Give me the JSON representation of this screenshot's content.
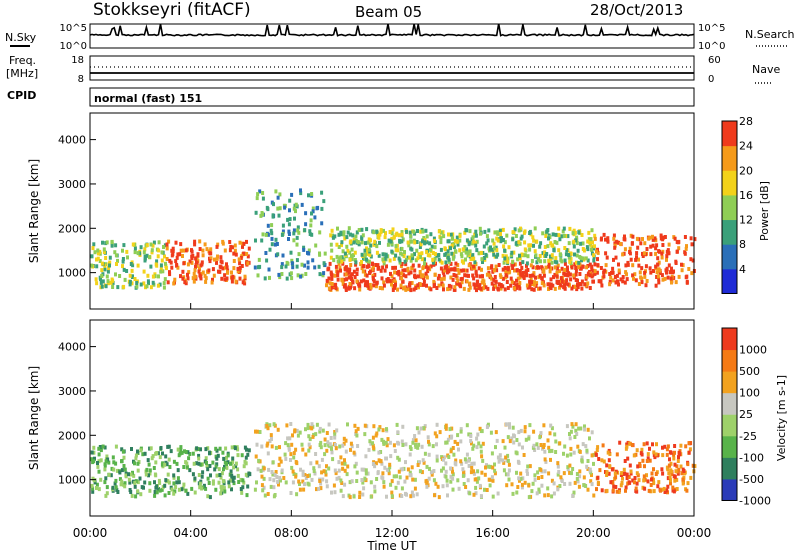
{
  "header": {
    "station": "Stokkseyri (fitACF)",
    "beam": "Beam 05",
    "date": "28/Oct/2013"
  },
  "side_labels": {
    "nsky": "N.Sky",
    "freq_line1": "Freq.",
    "freq_line2": "[MHz]",
    "cpid": "CPID",
    "nsearch": "N.Search",
    "nave": "Nave"
  },
  "noise_panel": {
    "left_ticks": [
      "10^5",
      "10^0"
    ],
    "right_ticks": [
      "10^5",
      "10^0"
    ]
  },
  "freq_panel": {
    "left_ticks": [
      "18",
      "8"
    ],
    "right_ticks": [
      "60",
      "0"
    ]
  },
  "cpid_text": "normal (fast) 151",
  "chart_data": [
    {
      "type": "heatmap",
      "ylabel": "Slant Range [km]",
      "ylim": [
        180,
        4600
      ],
      "yticks": [
        "1000",
        "2000",
        "3000",
        "4000"
      ],
      "colorbar": {
        "label": "Power [dB]",
        "ticks": [
          "4",
          "8",
          "12",
          "16",
          "20",
          "24",
          "28"
        ],
        "colors": [
          "#1f2bd6",
          "#2a6fb8",
          "#3aa07a",
          "#8fce55",
          "#f3d21a",
          "#f59a1a",
          "#ef3a1c"
        ]
      },
      "scatter_bands": [
        {
          "t0": 0.0,
          "t1": 3.0,
          "r0": 700,
          "r1": 1750,
          "level": 3
        },
        {
          "t0": 3.0,
          "t1": 6.3,
          "r0": 800,
          "r1": 1750,
          "level": 6
        },
        {
          "t0": 6.5,
          "t1": 9.3,
          "r0": 900,
          "r1": 2900,
          "level": 2
        },
        {
          "t0": 9.3,
          "t1": 20.0,
          "r0": 650,
          "r1": 1250,
          "level": 6
        },
        {
          "t0": 9.5,
          "t1": 20.0,
          "r0": 1250,
          "r1": 2050,
          "level": 3
        },
        {
          "t0": 20.0,
          "t1": 24.0,
          "r0": 750,
          "r1": 1900,
          "level": 6
        }
      ]
    },
    {
      "type": "heatmap",
      "ylabel": "Slant Range [km]",
      "ylim": [
        180,
        4600
      ],
      "yticks": [
        "1000",
        "2000",
        "3000",
        "4000"
      ],
      "xlabel": "Time UT",
      "xticks": [
        "00:00",
        "04:00",
        "08:00",
        "12:00",
        "16:00",
        "20:00",
        "00:00"
      ],
      "colorbar": {
        "label": "Velocity [m s-1]",
        "ticks": [
          "1000",
          "500",
          "100",
          "25",
          "-25",
          "-100",
          "-500",
          "-1000"
        ],
        "colors": [
          "#2a3bb8",
          "#2f7f5e",
          "#58b34a",
          "#9ed16a",
          "#c7c7c0",
          "#f2a21f",
          "#f57a15",
          "#ee3a1e"
        ]
      },
      "scatter_bands": [
        {
          "t0": 0.0,
          "t1": 6.3,
          "r0": 650,
          "r1": 1800,
          "level": 2
        },
        {
          "t0": 6.5,
          "t1": 20.0,
          "r0": 650,
          "r1": 2300,
          "level": 4
        },
        {
          "t0": 20.0,
          "t1": 24.0,
          "r0": 750,
          "r1": 1900,
          "level": 6
        }
      ]
    }
  ]
}
